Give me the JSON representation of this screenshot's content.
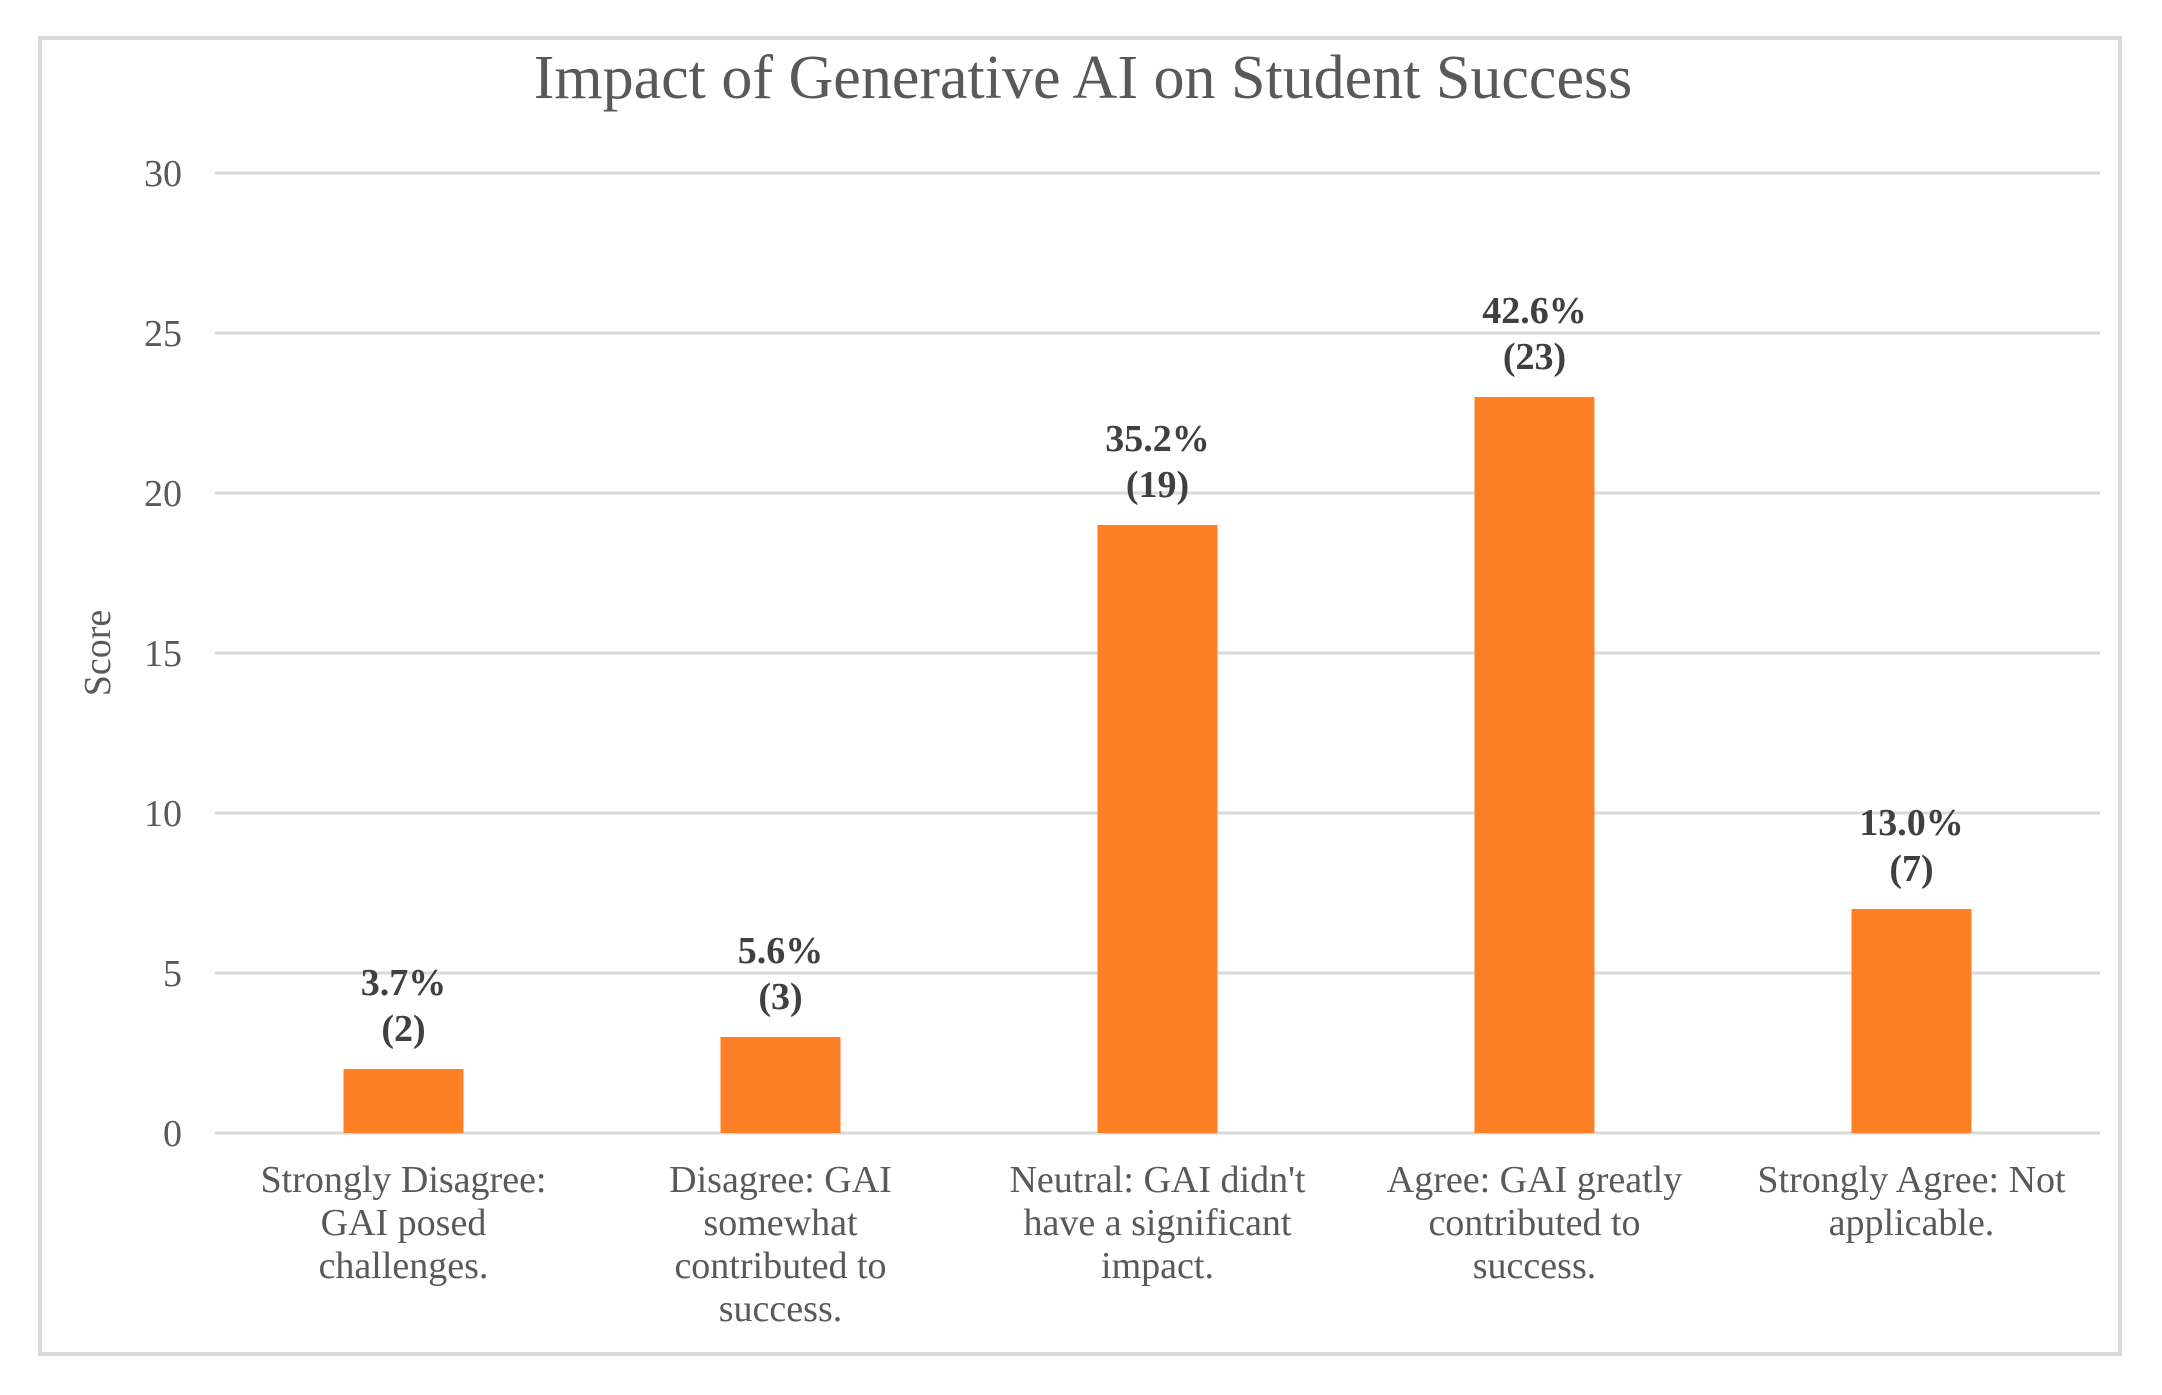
{
  "chart_data": {
    "type": "bar",
    "title": "Impact of Generative AI on Student Success",
    "xlabel": "",
    "ylabel": "Score",
    "ylim": [
      0,
      30
    ],
    "yticks": [
      0,
      5,
      10,
      15,
      20,
      25,
      30
    ],
    "grid": true,
    "bar_color": "#fd7f26",
    "categories": [
      [
        "Strongly Disagree:",
        "GAI posed",
        "challenges."
      ],
      [
        "Disagree: GAI",
        "somewhat",
        "contributed to",
        "success."
      ],
      [
        "Neutral: GAI didn't",
        "have a significant",
        "impact."
      ],
      [
        "Agree: GAI greatly",
        "contributed to",
        "success."
      ],
      [
        "Strongly Agree: Not",
        "applicable."
      ]
    ],
    "values": [
      2,
      3,
      19,
      23,
      7
    ],
    "data_labels": [
      [
        "3.7%",
        "(2)"
      ],
      [
        "5.6%",
        "(3)"
      ],
      [
        "35.2%",
        "(19)"
      ],
      [
        "42.6%",
        "(23)"
      ],
      [
        "13.0%",
        "(7)"
      ]
    ]
  }
}
